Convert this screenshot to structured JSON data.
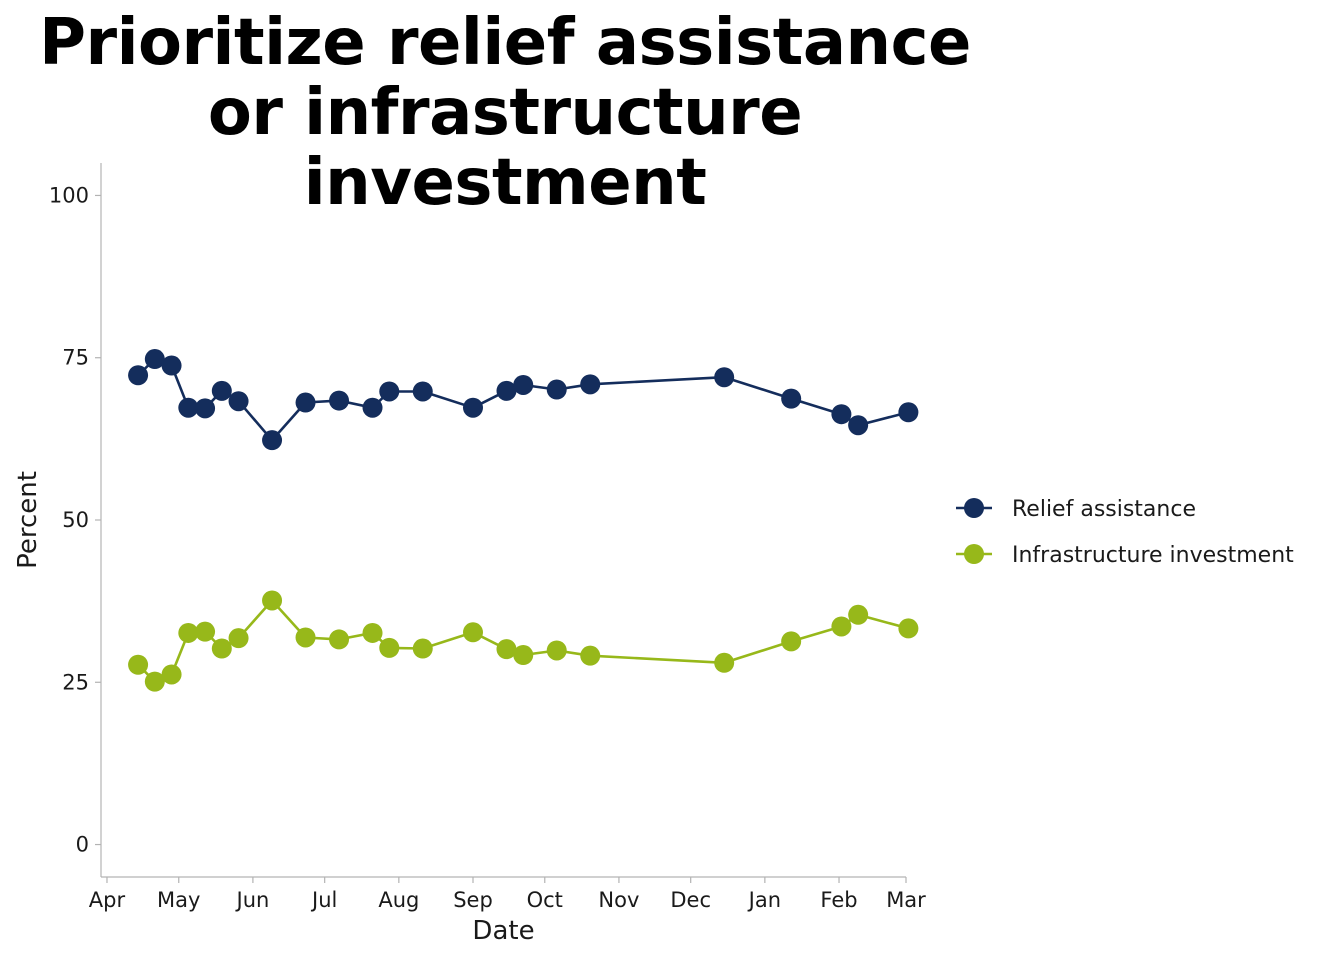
{
  "chart_data": {
    "type": "line",
    "title_lines": [
      "Prioritize relief assistance",
      "or infrastructure investment"
    ],
    "xlabel": "Date",
    "ylabel": "Percent",
    "ylim": [
      -5,
      105
    ],
    "yticks": [
      0,
      25,
      50,
      75,
      100
    ],
    "x_range_days": [
      -2.5,
      334
    ],
    "x_ticks": [
      {
        "label": "Apr",
        "day": 0
      },
      {
        "label": "May",
        "day": 30
      },
      {
        "label": "Jun",
        "day": 61
      },
      {
        "label": "Jul",
        "day": 91
      },
      {
        "label": "Aug",
        "day": 122
      },
      {
        "label": "Sep",
        "day": 153
      },
      {
        "label": "Oct",
        "day": 183
      },
      {
        "label": "Nov",
        "day": 214
      },
      {
        "label": "Dec",
        "day": 244
      },
      {
        "label": "Jan",
        "day": 275
      },
      {
        "label": "Feb",
        "day": 306
      },
      {
        "label": "Mar",
        "day": 334
      }
    ],
    "legend_position": "right",
    "series": [
      {
        "name": "Relief assistance",
        "color": "#142d5c",
        "points": [
          {
            "day": 13,
            "value": 72.3
          },
          {
            "day": 20,
            "value": 74.8
          },
          {
            "day": 27,
            "value": 73.8
          },
          {
            "day": 34,
            "value": 67.3
          },
          {
            "day": 41,
            "value": 67.2
          },
          {
            "day": 48,
            "value": 69.9
          },
          {
            "day": 55,
            "value": 68.3
          },
          {
            "day": 69,
            "value": 62.3
          },
          {
            "day": 83,
            "value": 68.1
          },
          {
            "day": 97,
            "value": 68.4
          },
          {
            "day": 111,
            "value": 67.3
          },
          {
            "day": 118,
            "value": 69.8
          },
          {
            "day": 132,
            "value": 69.8
          },
          {
            "day": 153,
            "value": 67.3
          },
          {
            "day": 167,
            "value": 69.9
          },
          {
            "day": 174,
            "value": 70.8
          },
          {
            "day": 188,
            "value": 70.1
          },
          {
            "day": 202,
            "value": 70.9
          },
          {
            "day": 258,
            "value": 72.0
          },
          {
            "day": 286,
            "value": 68.7
          },
          {
            "day": 307,
            "value": 66.3
          },
          {
            "day": 314,
            "value": 64.6
          },
          {
            "day": 335,
            "value": 66.6
          }
        ]
      },
      {
        "name": "Infrastructure investment",
        "color": "#97b81a",
        "points": [
          {
            "day": 13,
            "value": 27.7
          },
          {
            "day": 20,
            "value": 25.1
          },
          {
            "day": 27,
            "value": 26.2
          },
          {
            "day": 34,
            "value": 32.6
          },
          {
            "day": 41,
            "value": 32.8
          },
          {
            "day": 48,
            "value": 30.2
          },
          {
            "day": 55,
            "value": 31.8
          },
          {
            "day": 69,
            "value": 37.6
          },
          {
            "day": 83,
            "value": 31.9
          },
          {
            "day": 97,
            "value": 31.6
          },
          {
            "day": 111,
            "value": 32.6
          },
          {
            "day": 118,
            "value": 30.3
          },
          {
            "day": 132,
            "value": 30.2
          },
          {
            "day": 153,
            "value": 32.7
          },
          {
            "day": 167,
            "value": 30.1
          },
          {
            "day": 174,
            "value": 29.2
          },
          {
            "day": 188,
            "value": 29.9
          },
          {
            "day": 202,
            "value": 29.1
          },
          {
            "day": 258,
            "value": 28.0
          },
          {
            "day": 286,
            "value": 31.3
          },
          {
            "day": 307,
            "value": 33.6
          },
          {
            "day": 314,
            "value": 35.4
          },
          {
            "day": 335,
            "value": 33.3
          }
        ]
      }
    ]
  }
}
